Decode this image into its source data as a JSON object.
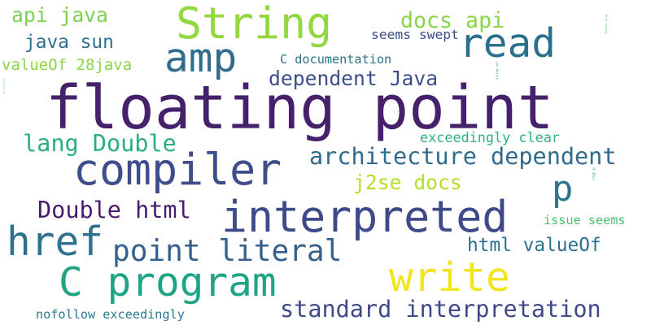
{
  "words": [
    {
      "text": "floating point",
      "color": "#46216b"
    },
    {
      "text": "String",
      "color": "#93d741"
    },
    {
      "text": "amp",
      "color": "#2f6c8e"
    },
    {
      "text": "read",
      "color": "#2a6f8e"
    },
    {
      "text": "compiler",
      "color": "#3d4e8a"
    },
    {
      "text": "interpreted",
      "color": "#3e4a89"
    },
    {
      "text": "href",
      "color": "#2d718e"
    },
    {
      "text": "C program",
      "color": "#20a486"
    },
    {
      "text": "write",
      "color": "#f1e51d"
    },
    {
      "text": "p",
      "color": "#2b758e"
    },
    {
      "text": "point literal",
      "color": "#34608d"
    },
    {
      "text": "architecture dependent",
      "color": "#306a8e"
    },
    {
      "text": "standard interpretation",
      "color": "#3f4889"
    },
    {
      "text": "dependent Java",
      "color": "#3d4e8a"
    },
    {
      "text": "Double html",
      "color": "#481a6c"
    },
    {
      "text": "lang Double",
      "color": "#29af7f"
    },
    {
      "text": "api java",
      "color": "#7cd250"
    },
    {
      "text": "java sun",
      "color": "#2d708e"
    },
    {
      "text": "docs api",
      "color": "#89d548"
    },
    {
      "text": "j2se docs",
      "color": "#b5de2b"
    },
    {
      "text": "html valueOf",
      "color": "#2c728e"
    },
    {
      "text": "String rel",
      "color": "#228c8d"
    },
    {
      "text": "valueOf 28java",
      "color": "#8bd646"
    },
    {
      "text": "C documentation",
      "color": "#2c728e"
    },
    {
      "text": "seems swept",
      "color": "#3e4c8a"
    },
    {
      "text": "28java lang",
      "color": "#56c667"
    },
    {
      "text": "rel nofollow",
      "color": "#5ec962"
    },
    {
      "text": "exceedingly clear",
      "color": "#2db27d"
    },
    {
      "text": "rug p",
      "color": "#44bf70"
    },
    {
      "text": "issue seems",
      "color": "#4ac16d"
    },
    {
      "text": "nofollow exceedingly",
      "color": "#2a788e"
    }
  ]
}
